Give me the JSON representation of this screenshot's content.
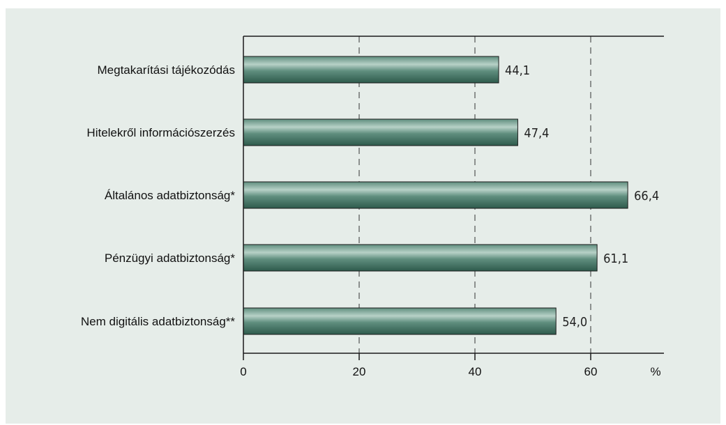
{
  "chart_data": {
    "type": "bar",
    "orientation": "horizontal",
    "categories": [
      "Megtakarítási tájékozódás",
      "Hitelekről információszerzés",
      "Általános adatbiztonság*",
      "Pénzügyi adatbiztonság*",
      "Nem digitális adatbiztonság**"
    ],
    "values": [
      44.1,
      47.4,
      66.4,
      61.1,
      54.0
    ],
    "value_labels": [
      "44,1",
      "47,4",
      "66,4",
      "61,1",
      "54,0"
    ],
    "x_ticks": [
      "0",
      "20",
      "40",
      "60"
    ],
    "x_unit": "%",
    "xlim": [
      0,
      73
    ],
    "grid": "vertical dashed at 20, 40, 60",
    "title": "",
    "xlabel": "",
    "ylabel": ""
  },
  "colors": {
    "panel_background": "#e6ede9",
    "bar_dark": "#2e5a4c",
    "bar_mid": "#5f8e7e",
    "bar_light": "#b7d1c7",
    "axis": "#1a1a1a",
    "grid": "#333333"
  }
}
